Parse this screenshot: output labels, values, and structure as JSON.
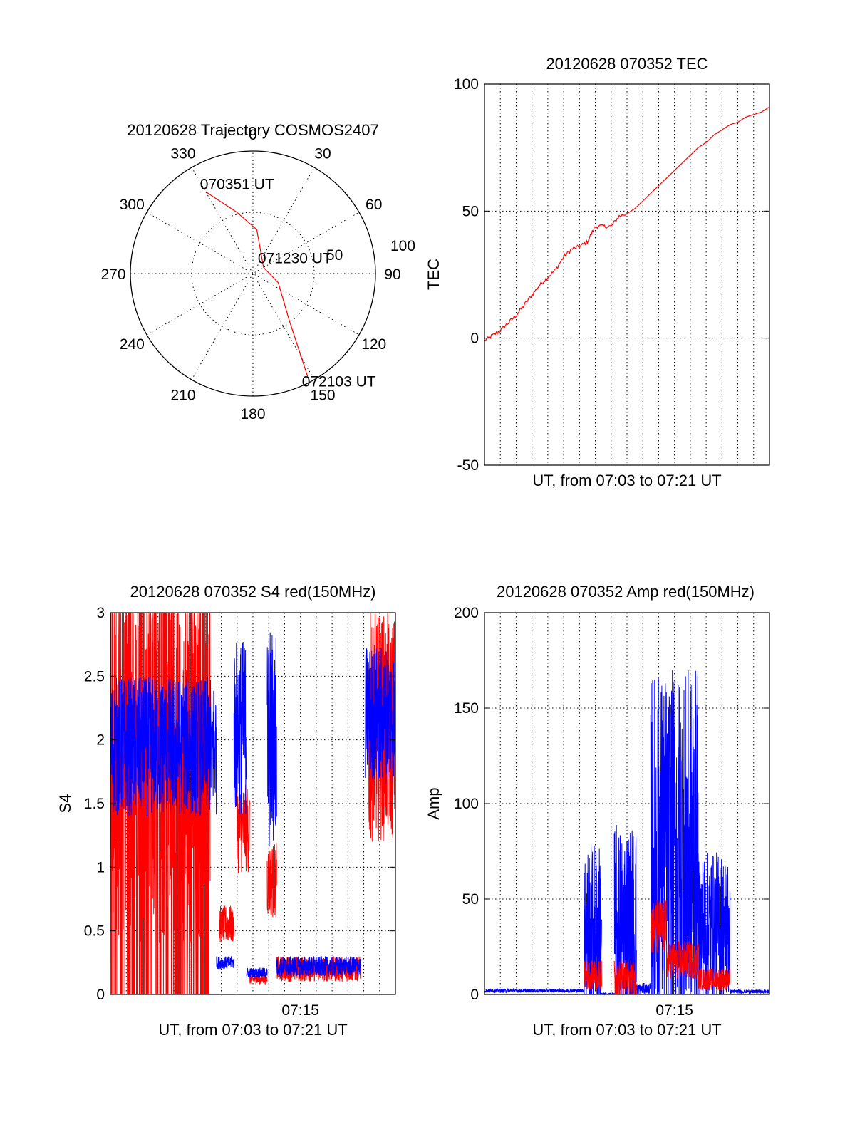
{
  "colors": {
    "red": "#ff0000",
    "blue": "#0000ff",
    "axis": "#000000"
  },
  "chart_data": [
    {
      "id": "trajectory",
      "type": "polar",
      "title": "20120628 Trajectory COSMOS2407",
      "angle_labels": [
        "0",
        "30",
        "60",
        "90",
        "120",
        "150",
        "180",
        "210",
        "240",
        "270",
        "300",
        "330"
      ],
      "radial_labels": [
        "50",
        "100"
      ],
      "rlim": [
        0,
        100
      ],
      "grid": true,
      "series": [
        {
          "color": "red",
          "points": [
            [
              330,
              77
            ],
            [
              345,
              52
            ],
            [
              5,
              36
            ],
            [
              60,
              10
            ],
            [
              110,
              22
            ],
            [
              142,
              48
            ],
            [
              152,
              95
            ]
          ]
        }
      ],
      "annotations": [
        {
          "text": "070351 UT",
          "az": 330,
          "r": 77
        },
        {
          "text": "071230 UT",
          "az": 60,
          "r": 10
        },
        {
          "text": "072103 UT",
          "az": 152,
          "r": 95
        }
      ]
    },
    {
      "id": "tec",
      "type": "line",
      "title": "20120628 070352 TEC",
      "xlabel": "UT, from 07:03 to 07:21 UT",
      "ylabel": "TEC",
      "xlim": [
        "07:03",
        "07:21"
      ],
      "ylim": [
        -50,
        100
      ],
      "yticks": [
        "-50",
        "0",
        "50",
        "100"
      ],
      "xticks": [],
      "grid": true,
      "series": [
        {
          "color": "red",
          "x": [
            0,
            0.5,
            1,
            1.5,
            2,
            2.5,
            3,
            3.5,
            4,
            4.5,
            5,
            5.5,
            6,
            6.5,
            7,
            7.5,
            8,
            8.5,
            9,
            9.5,
            10,
            10.5,
            11,
            11.5,
            12,
            12.5,
            13,
            13.5,
            14,
            14.5,
            15,
            15.5,
            16,
            16.5,
            17,
            17.5,
            18
          ],
          "y": [
            -1,
            1,
            3,
            6,
            9,
            13,
            17,
            21,
            24,
            27,
            32,
            35,
            36,
            38,
            44,
            44,
            44,
            48,
            49,
            51,
            54,
            57,
            60,
            63,
            66,
            69,
            72,
            75,
            77,
            80,
            82,
            84,
            85,
            87,
            88,
            89,
            91
          ]
        }
      ]
    },
    {
      "id": "s4",
      "type": "line",
      "title": "20120628 070352 S4 red(150MHz)",
      "xlabel": "UT, from 07:03 to 07:21 UT",
      "ylabel": "S4",
      "xlim": [
        "07:03",
        "07:21"
      ],
      "ylim": [
        0,
        3
      ],
      "yticks": [
        "0",
        "0.5",
        "1",
        "1.5",
        "2",
        "2.5",
        "3"
      ],
      "xticks": [
        {
          "at": 12,
          "label": "07:15"
        }
      ],
      "grid": true,
      "series": [
        {
          "color": "red",
          "segments": [
            {
              "from": 0,
              "to": 6.3,
              "base": 1.7,
              "amp": 1.3,
              "noise": "dense"
            },
            {
              "from": 6.9,
              "to": 7.8,
              "base": 0.55,
              "amp": 0.15
            },
            {
              "from": 8.0,
              "to": 8.8,
              "base": 1.3,
              "amp": 0.35
            },
            {
              "from": 8.8,
              "to": 9.9,
              "base": 0.12,
              "amp": 0.04
            },
            {
              "from": 9.9,
              "to": 10.5,
              "base": 0.9,
              "amp": 0.3
            },
            {
              "from": 10.5,
              "to": 15.8,
              "base": 0.2,
              "amp": 0.1
            },
            {
              "from": 16.3,
              "to": 18,
              "base": 2.1,
              "amp": 0.9
            }
          ]
        },
        {
          "color": "blue",
          "segments": [
            {
              "from": 0,
              "to": 6.7,
              "base": 1.95,
              "amp": 0.55
            },
            {
              "from": 6.7,
              "to": 7.8,
              "base": 0.25,
              "amp": 0.05
            },
            {
              "from": 7.8,
              "to": 8.6,
              "base": 2.1,
              "amp": 0.7
            },
            {
              "from": 8.6,
              "to": 9.9,
              "base": 0.17,
              "amp": 0.04
            },
            {
              "from": 9.9,
              "to": 10.5,
              "base": 2.0,
              "amp": 0.9
            },
            {
              "from": 10.5,
              "to": 15.8,
              "base": 0.22,
              "amp": 0.08
            },
            {
              "from": 16.1,
              "to": 18,
              "base": 2.2,
              "amp": 0.55
            }
          ]
        }
      ]
    },
    {
      "id": "amp",
      "type": "line",
      "title": "20120628 070352 Amp red(150MHz)",
      "xlabel": "UT, from 07:03 to 07:21 UT",
      "ylabel": "Amp",
      "xlim": [
        "07:03",
        "07:21"
      ],
      "ylim": [
        0,
        200
      ],
      "yticks": [
        "0",
        "50",
        "100",
        "150",
        "200"
      ],
      "xticks": [
        {
          "at": 12,
          "label": "07:15"
        }
      ],
      "grid": true,
      "series": [
        {
          "color": "blue",
          "segments": [
            {
              "from": 0,
              "to": 6.3,
              "base": 2,
              "amp": 1
            },
            {
              "from": 6.3,
              "to": 7.4,
              "base": 35,
              "amp": 45
            },
            {
              "from": 7.4,
              "to": 8.2,
              "base": 0,
              "amp": 1
            },
            {
              "from": 8.2,
              "to": 9.6,
              "base": 35,
              "amp": 55
            },
            {
              "from": 9.6,
              "to": 10.5,
              "base": 3,
              "amp": 3
            },
            {
              "from": 10.5,
              "to": 13.5,
              "base": 75,
              "amp": 95
            },
            {
              "from": 13.5,
              "to": 15.5,
              "base": 35,
              "amp": 40
            },
            {
              "from": 15.5,
              "to": 18,
              "base": 1.5,
              "amp": 1
            }
          ]
        },
        {
          "color": "red",
          "segments": [
            {
              "from": 6.3,
              "to": 7.4,
              "base": 10,
              "amp": 8
            },
            {
              "from": 8.2,
              "to": 9.6,
              "base": 8,
              "amp": 10
            },
            {
              "from": 10.5,
              "to": 11.5,
              "base": 35,
              "amp": 15
            },
            {
              "from": 11.5,
              "to": 13.5,
              "base": 18,
              "amp": 10
            },
            {
              "from": 13.5,
              "to": 15.5,
              "base": 8,
              "amp": 6
            }
          ]
        }
      ]
    }
  ]
}
